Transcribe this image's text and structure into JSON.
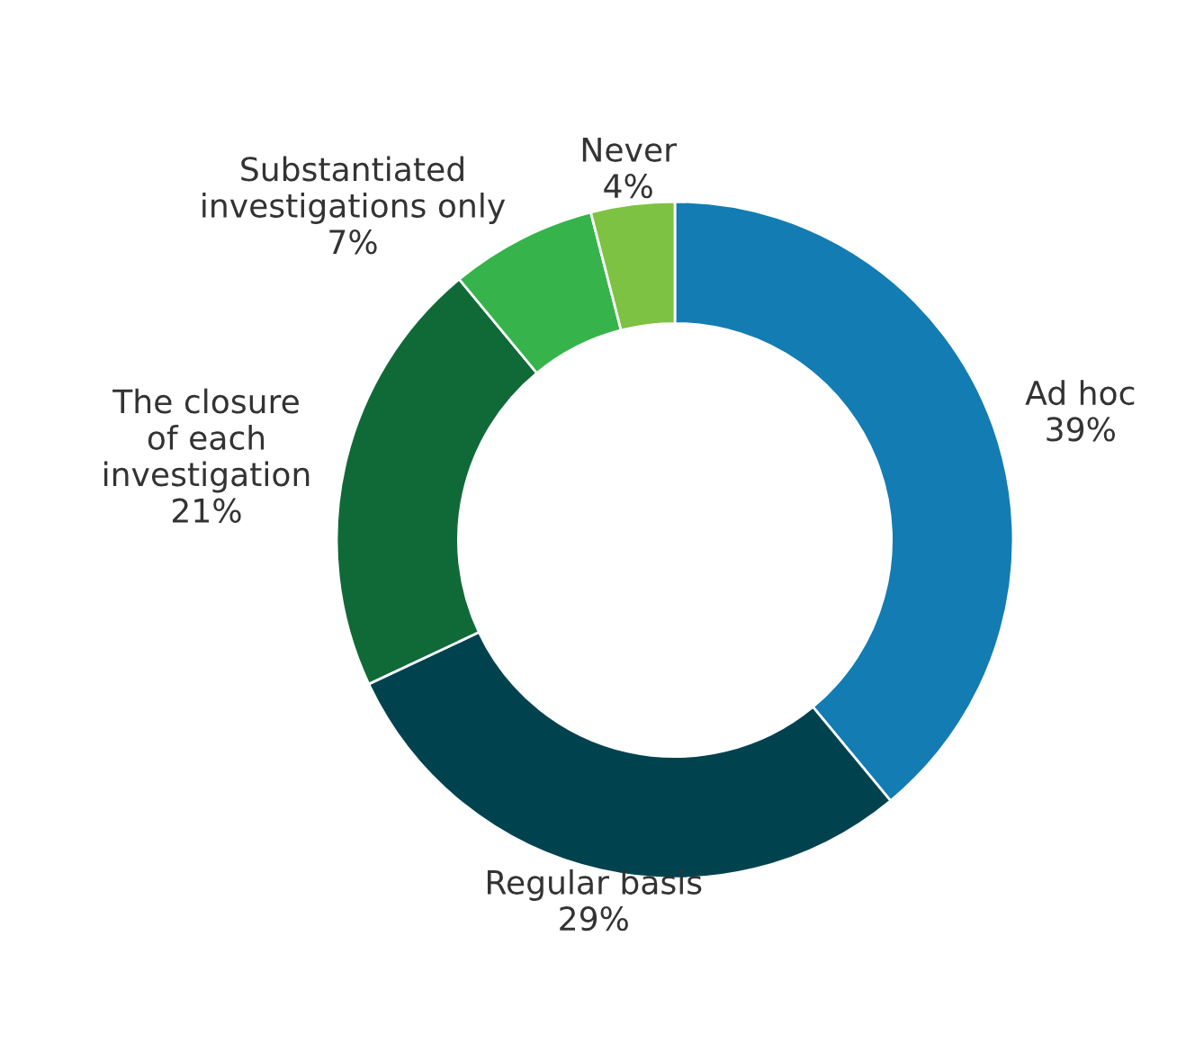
{
  "chart_data": {
    "type": "donut",
    "categories": [
      "Ad hoc",
      "Regular basis",
      "The closure\nof each\ninvestigation",
      "Substantiated\ninvestigations only",
      "Never"
    ],
    "values": [
      39,
      29,
      21,
      7,
      4
    ],
    "value_labels": [
      "39%",
      "29%",
      "21%",
      "7%",
      "4%"
    ],
    "colors": [
      "#137cb3",
      "#00434f",
      "#106a38",
      "#36b44b",
      "#7dc242"
    ],
    "legend": false
  }
}
